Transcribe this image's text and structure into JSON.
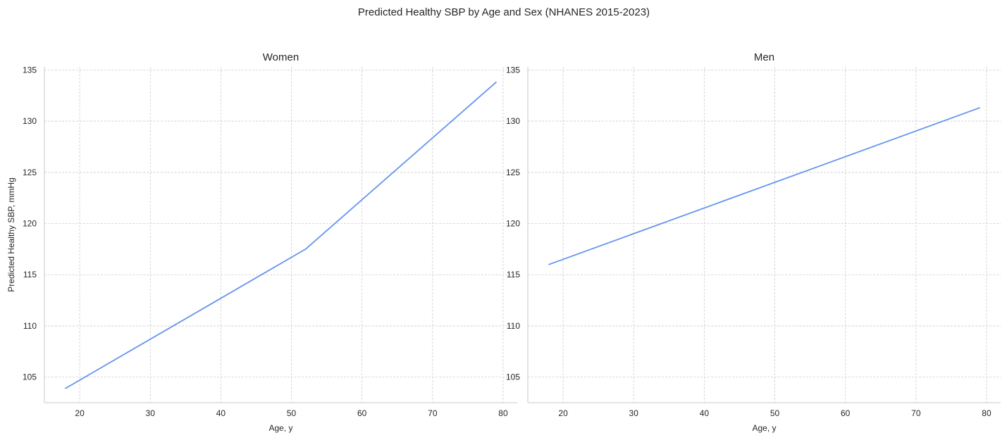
{
  "figure_title": "Predicted Healthy SBP by Age and Sex (NHANES 2015-2023)",
  "colors": {
    "line": "#6495ED",
    "grid": "#cccccc",
    "spine": "#c8c8c8"
  },
  "chart_data": [
    {
      "type": "line",
      "title": "Women",
      "xlabel": "Age, y",
      "ylabel": "Predicted Healthy SBP, mmHg",
      "xlim": [
        15,
        82
      ],
      "ylim": [
        102.5,
        135.3
      ],
      "xticks": [
        20,
        30,
        40,
        50,
        60,
        70,
        80
      ],
      "yticks": [
        105,
        110,
        115,
        120,
        125,
        130,
        135
      ],
      "grid": true,
      "series": [
        {
          "x": [
            18,
            52,
            79
          ],
          "y": [
            103.9,
            117.5,
            133.8
          ]
        }
      ]
    },
    {
      "type": "line",
      "title": "Men",
      "xlabel": "Age, y",
      "ylabel": "",
      "xlim": [
        15,
        82
      ],
      "ylim": [
        102.5,
        135.3
      ],
      "xticks": [
        20,
        30,
        40,
        50,
        60,
        70,
        80
      ],
      "yticks": [
        105,
        110,
        115,
        120,
        125,
        130,
        135
      ],
      "grid": true,
      "series": [
        {
          "x": [
            18,
            79
          ],
          "y": [
            116.0,
            131.3
          ]
        }
      ]
    }
  ]
}
